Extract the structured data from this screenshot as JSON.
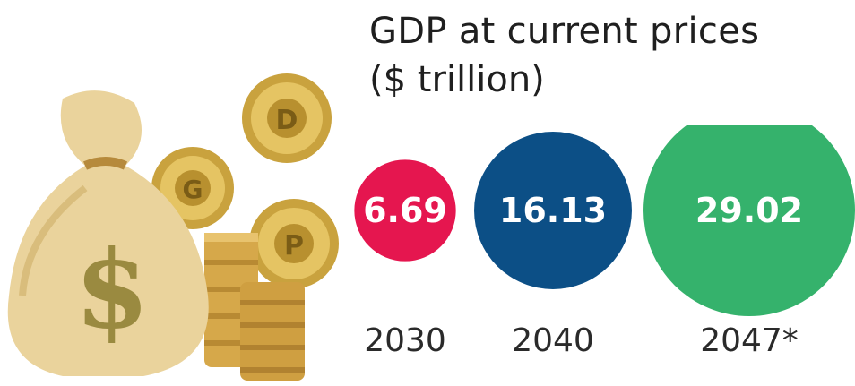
{
  "chart_data": {
    "type": "bubble",
    "title": "GDP at current prices",
    "subtitle": "($ trillion)",
    "categories": [
      "2030",
      "2040",
      "2047*"
    ],
    "values": [
      6.69,
      16.13,
      29.02
    ],
    "value_labels": [
      "6.69",
      "16.13",
      "29.02"
    ],
    "colors": [
      "#e5164f",
      "#0c4f86",
      "#35b26c"
    ]
  },
  "illustration": {
    "icon": "money-bag-with-gears-icon",
    "bag_symbol": "$",
    "gear_letters": [
      "G",
      "D",
      "P"
    ]
  }
}
